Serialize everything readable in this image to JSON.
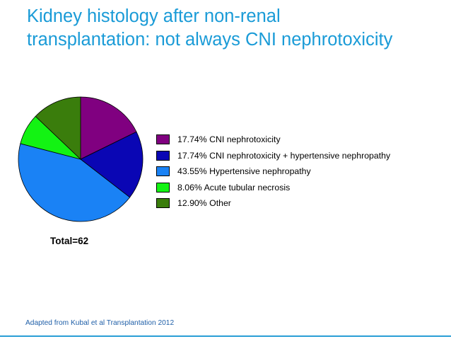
{
  "slide": {
    "title_line1": "Kidney histology after non-renal",
    "title_line2": "transplantation: not always CNI nephrotoxicity",
    "total_label": "Total=62",
    "source": "Adapted from Kubal et al Transplantation 2012",
    "title_color": "#1a9bd7"
  },
  "chart_data": {
    "type": "pie",
    "total": 62,
    "slices": [
      {
        "label": "17.74%  CNI nephrotoxicity",
        "value": 17.74,
        "color": "#800080"
      },
      {
        "label": "17.74%  CNI nephrotoxicity + hypertensive nephropathy",
        "value": 17.74,
        "color": "#0a06b4"
      },
      {
        "label": "43.55%  Hypertensive nephropathy",
        "value": 43.55,
        "color": "#1a82f5"
      },
      {
        "label": "8.06%  Acute tubular necrosis",
        "value": 8.06,
        "color": "#13f313"
      },
      {
        "label": "12.90%  Other",
        "value": 12.9,
        "color": "#3a7d0c"
      }
    ]
  }
}
